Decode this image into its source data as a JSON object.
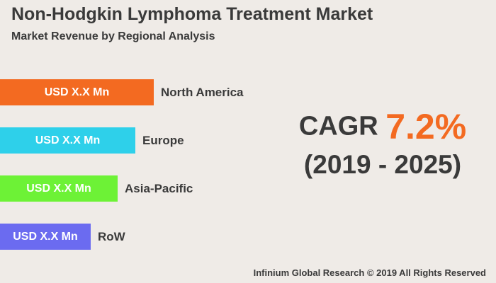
{
  "header": {
    "title": "Non-Hodgkin Lymphoma Treatment Market",
    "subtitle": "Market Revenue by Regional Analysis"
  },
  "chart_data": {
    "type": "bar",
    "orientation": "horizontal",
    "categories": [
      "North America",
      "Europe",
      "Asia-Pacific",
      "RoW"
    ],
    "value_labels": [
      "USD X.X Mn",
      "USD X.X Mn",
      "USD X.X Mn",
      "USD X.X Mn"
    ],
    "relative_values": [
      1.0,
      0.88,
      0.765,
      0.59
    ],
    "colors": [
      "#f36a21",
      "#2ed0ea",
      "#6df236",
      "#6b6bf0"
    ]
  },
  "cagr": {
    "label": "CAGR",
    "value": "7.2%",
    "period": "(2019 - 2025)"
  },
  "footer": {
    "text": "Infinium Global Research © 2019 All Rights Reserved"
  }
}
